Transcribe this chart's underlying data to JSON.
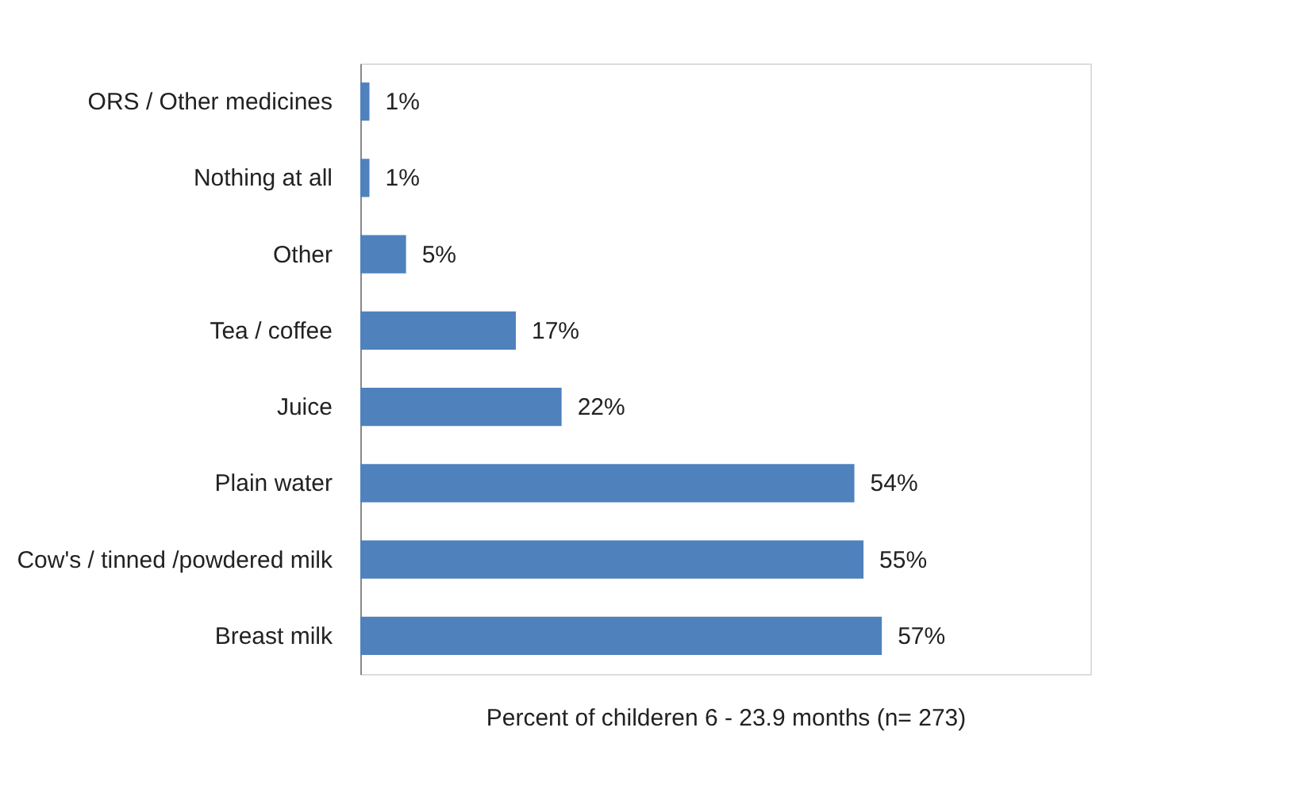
{
  "chart_data": {
    "type": "bar",
    "orientation": "horizontal",
    "xlabel": "Percent of childeren 6 - 23.9 months (n= 273)",
    "categories": [
      "ORS / Other medicines",
      "Nothing at all",
      "Other",
      "Tea / coffee",
      "Juice",
      "Plain water",
      "Cow's / tinned /powdered milk",
      "Breast milk"
    ],
    "values": [
      1,
      1,
      5,
      17,
      22,
      54,
      55,
      57
    ],
    "value_labels": [
      "1%",
      "1%",
      "5%",
      "17%",
      "22%",
      "54%",
      "55%",
      "57%"
    ],
    "color": "#4f81bd"
  }
}
